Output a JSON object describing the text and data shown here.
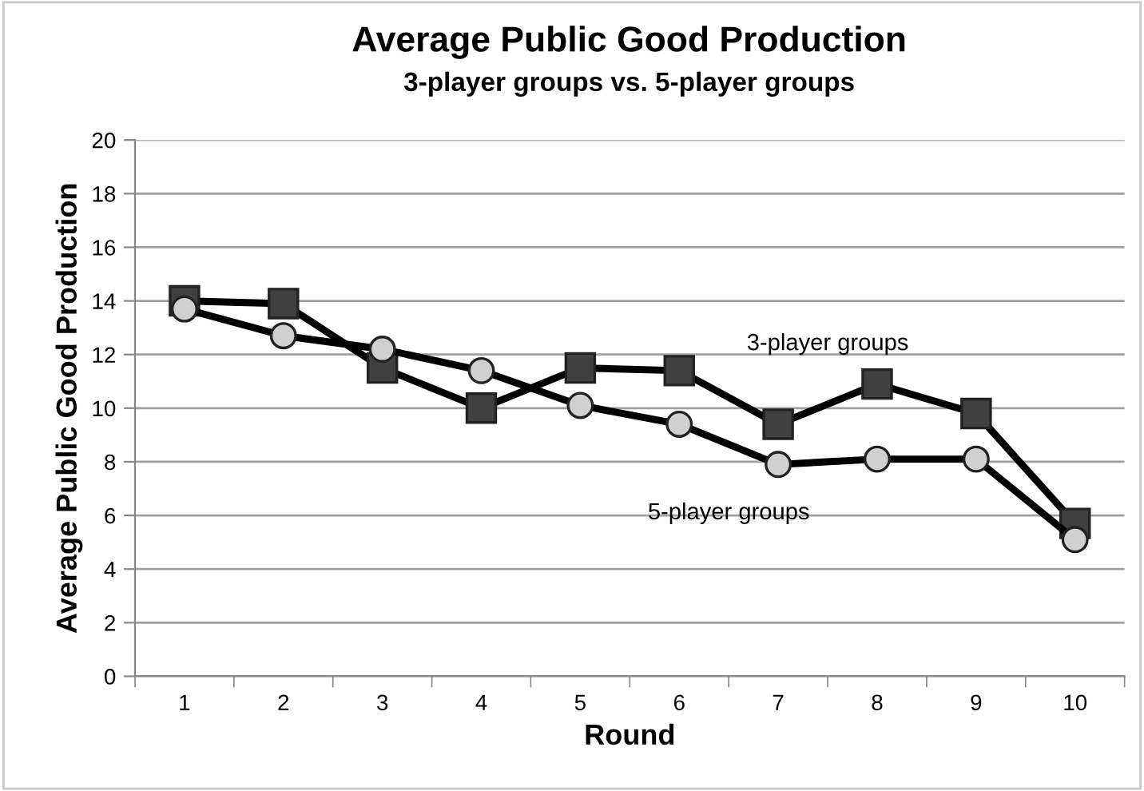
{
  "chart_data": {
    "type": "line",
    "title": "Average Public Good Production",
    "subtitle": "3-player groups vs. 5-player groups",
    "xlabel": "Round",
    "ylabel": "Average Public Good Production",
    "categories": [
      "1",
      "2",
      "3",
      "4",
      "5",
      "6",
      "7",
      "8",
      "9",
      "10"
    ],
    "series": [
      {
        "name": "3-player groups",
        "color": "#404040",
        "marker": "square",
        "values": [
          14.0,
          13.9,
          11.5,
          10.0,
          11.5,
          11.4,
          9.4,
          10.9,
          9.8,
          5.7
        ]
      },
      {
        "name": "5-player groups",
        "color": "#d0d0d0",
        "marker": "circle",
        "values": [
          13.7,
          12.7,
          12.2,
          11.4,
          10.1,
          9.4,
          7.9,
          8.1,
          8.1,
          5.1
        ]
      }
    ],
    "ylim": [
      0,
      20
    ],
    "yticks": [
      0,
      2,
      4,
      6,
      8,
      10,
      12,
      14,
      16,
      18,
      20
    ],
    "grid": "y",
    "legend": false,
    "line_style": "solid"
  }
}
